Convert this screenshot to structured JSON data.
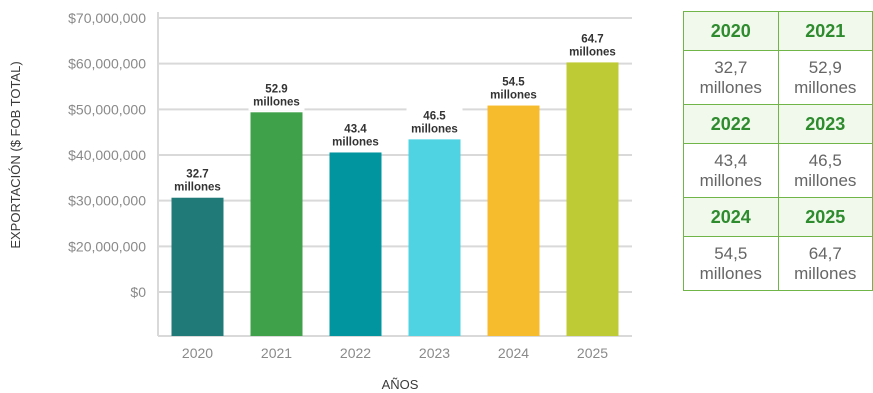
{
  "chart_data": {
    "type": "bar",
    "categories": [
      "2020",
      "2021",
      "2022",
      "2023",
      "2024",
      "2025"
    ],
    "values": [
      32.7,
      52.9,
      43.4,
      46.5,
      54.5,
      64.7
    ],
    "value_unit_millions": true,
    "data_labels": [
      {
        "number": "32.7",
        "unit": "millones"
      },
      {
        "number": "52.9",
        "unit": "millones"
      },
      {
        "number": "43.4",
        "unit": "millones"
      },
      {
        "number": "46.5",
        "unit": "millones"
      },
      {
        "number": "54.5",
        "unit": "millones"
      },
      {
        "number": "64.7",
        "unit": "millones"
      }
    ],
    "bar_colors": [
      "#1f7a78",
      "#3fa14a",
      "#00959f",
      "#4fd3e3",
      "#f7bb2e",
      "#bfcb35"
    ],
    "y_tick_labels": [
      "$70,000,000",
      "$60,000,000",
      "$50,000,000",
      "$40,000,000",
      "$30,000,000",
      "$20,000,000",
      "$0"
    ],
    "xlabel": "AÑOS",
    "ylabel": "EXPORTACIÓN ($ FOB TOTAL)",
    "grid": true
  },
  "summary_table": [
    {
      "years": [
        "2020",
        "2021"
      ],
      "values": [
        [
          "32,7",
          "millones"
        ],
        [
          "52,9",
          "millones"
        ]
      ]
    },
    {
      "years": [
        "2022",
        "2023"
      ],
      "values": [
        [
          "43,4",
          "millones"
        ],
        [
          "46,5",
          "millones"
        ]
      ]
    },
    {
      "years": [
        "2024",
        "2025"
      ],
      "values": [
        [
          "54,5",
          "millones"
        ],
        [
          "64,7",
          "millones"
        ]
      ]
    }
  ],
  "colors": {
    "grid": "#d9d9d9",
    "table_border": "#6fb547",
    "table_header_text": "#2e8b2e"
  }
}
